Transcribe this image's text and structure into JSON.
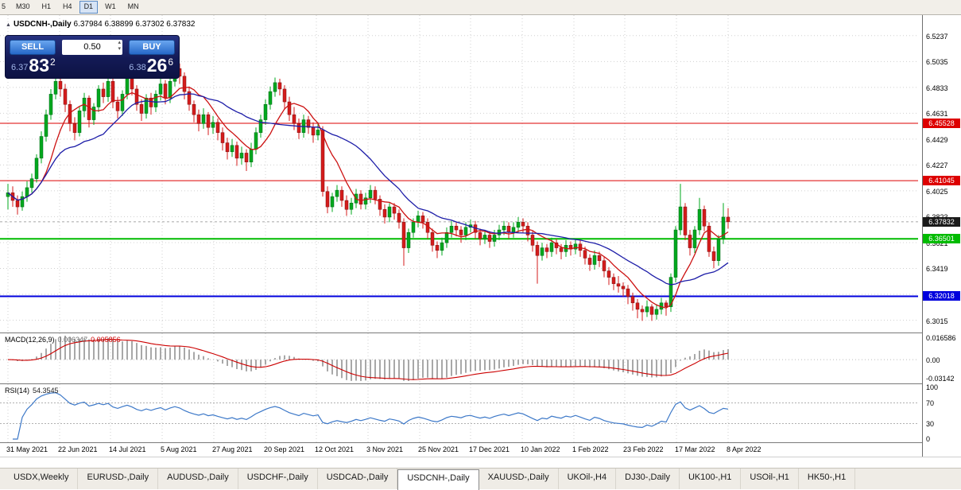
{
  "toolbar": {
    "timeframes": [
      "5",
      "M30",
      "H1",
      "H4",
      "D1",
      "W1",
      "MN"
    ],
    "active_timeframe": "D1"
  },
  "icons": {
    "panel_toggle": "▲",
    "spin_up": "▴",
    "spin_down": "▾"
  },
  "trade_panel": {
    "sell_label": "SELL",
    "buy_label": "BUY",
    "lot_size": "0.50",
    "bid_prefix": "6.37",
    "bid_big": "83",
    "bid_sup": "2",
    "ask_prefix": "6.38",
    "ask_big": "26",
    "ask_sup": "6"
  },
  "chart_data": {
    "type": "candlestick",
    "symbol": "USDCNH-,Daily",
    "ohlc_label": "6.37984 6.38899 6.37302 6.37832",
    "y_range": [
      6.295,
      6.536
    ],
    "y_ticks": [
      "6.5237",
      "6.5035",
      "6.4833",
      "6.4631",
      "6.4429",
      "6.4227",
      "6.4025",
      "6.3823",
      "6.3621",
      "6.3419",
      "6.3217",
      "6.3015"
    ],
    "x_labels": [
      "31 May 2021",
      "22 Jun 2021",
      "14 Jul 2021",
      "5 Aug 2021",
      "27 Aug 2021",
      "20 Sep 2021",
      "12 Oct 2021",
      "3 Nov 2021",
      "25 Nov 2021",
      "17 Dec 2021",
      "10 Jan 2022",
      "1 Feb 2022",
      "23 Feb 2022",
      "17 Mar 2022",
      "8 Apr 2022"
    ],
    "colors": {
      "candle_up": "#00a81e",
      "candle_up_border": "#006414",
      "candle_down": "#d41c1c",
      "candle_down_border": "#7a0f0f",
      "grid": "#d0d0d0",
      "macd_hist": "#a8a8a8",
      "macd_signal": "#cc0000",
      "rsi_line": "#3c78c8"
    },
    "moving_averages": [
      {
        "name": "ma-fast",
        "period": 8,
        "color": "#cc1111"
      },
      {
        "name": "ma-slow",
        "period": 21,
        "color": "#1d1da8"
      }
    ],
    "levels": [
      {
        "price": 6.45528,
        "label": "6.45528",
        "color": "#dd0000",
        "width": 1
      },
      {
        "price": 6.41045,
        "label": "6.41045",
        "color": "#dd0000",
        "width": 1
      },
      {
        "price": 6.36501,
        "label": "6.36501",
        "color": "#00bb00",
        "width": 2
      },
      {
        "price": 6.32018,
        "label": "6.32018",
        "color": "#0000dd",
        "width": 2
      }
    ],
    "current_price": {
      "value": 6.37832,
      "label": "6.37832",
      "color": "#1a1a1a"
    },
    "indicators": [
      {
        "name": "MACD",
        "title": "MACD(12,26,9)",
        "value_main": "0.006347",
        "value_signal": "0.005856",
        "fast": 12,
        "slow": 26,
        "signal": 9,
        "y_ticks": [
          "0.016586",
          "0.00",
          "-0.03142"
        ]
      },
      {
        "name": "RSI",
        "title": "RSI(14)",
        "value": "54.3545",
        "period": 14,
        "levels": [
          70,
          30
        ],
        "y_ticks": [
          "100",
          "70",
          "30",
          "0"
        ]
      }
    ],
    "candles": [
      [
        6.398,
        6.408,
        6.388,
        6.401
      ],
      [
        6.401,
        6.406,
        6.39,
        6.395
      ],
      [
        6.395,
        6.399,
        6.384,
        6.39
      ],
      [
        6.39,
        6.402,
        6.387,
        6.398
      ],
      [
        6.398,
        6.41,
        6.394,
        6.405
      ],
      [
        6.405,
        6.416,
        6.401,
        6.412
      ],
      [
        6.412,
        6.431,
        6.409,
        6.428
      ],
      [
        6.428,
        6.449,
        6.424,
        6.445
      ],
      [
        6.445,
        6.466,
        6.441,
        6.462
      ],
      [
        6.462,
        6.482,
        6.458,
        6.478
      ],
      [
        6.478,
        6.493,
        6.474,
        6.488
      ],
      [
        6.488,
        6.492,
        6.476,
        6.482
      ],
      [
        6.482,
        6.486,
        6.464,
        6.47
      ],
      [
        6.47,
        6.473,
        6.449,
        6.455
      ],
      [
        6.455,
        6.46,
        6.442,
        6.448
      ],
      [
        6.448,
        6.468,
        6.445,
        6.465
      ],
      [
        6.465,
        6.479,
        6.46,
        6.475
      ],
      [
        6.475,
        6.477,
        6.452,
        6.458
      ],
      [
        6.458,
        6.471,
        6.454,
        6.468
      ],
      [
        6.468,
        6.485,
        6.464,
        6.482
      ],
      [
        6.482,
        6.487,
        6.471,
        6.476
      ],
      [
        6.476,
        6.491,
        6.472,
        6.488
      ],
      [
        6.488,
        6.49,
        6.467,
        6.472
      ],
      [
        6.472,
        6.476,
        6.459,
        6.465
      ],
      [
        6.465,
        6.481,
        6.461,
        6.478
      ],
      [
        6.478,
        6.496,
        6.474,
        6.49
      ],
      [
        6.49,
        6.493,
        6.477,
        6.482
      ],
      [
        6.482,
        6.485,
        6.465,
        6.47
      ],
      [
        6.47,
        6.474,
        6.457,
        6.463
      ],
      [
        6.463,
        6.478,
        6.459,
        6.475
      ],
      [
        6.475,
        6.479,
        6.462,
        6.468
      ],
      [
        6.468,
        6.481,
        6.464,
        6.478
      ],
      [
        6.478,
        6.49,
        6.473,
        6.486
      ],
      [
        6.486,
        6.489,
        6.47,
        6.475
      ],
      [
        6.475,
        6.491,
        6.471,
        6.488
      ],
      [
        6.488,
        6.5035,
        6.484,
        6.498
      ],
      [
        6.498,
        6.502,
        6.486,
        6.492
      ],
      [
        6.492,
        6.495,
        6.474,
        6.48
      ],
      [
        6.48,
        6.484,
        6.465,
        6.47
      ],
      [
        6.47,
        6.473,
        6.456,
        6.462
      ],
      [
        6.462,
        6.466,
        6.449,
        6.455
      ],
      [
        6.455,
        6.467,
        6.451,
        6.462
      ],
      [
        6.462,
        6.464,
        6.446,
        6.452
      ],
      [
        6.452,
        6.461,
        6.447,
        6.456
      ],
      [
        6.456,
        6.459,
        6.442,
        6.448
      ],
      [
        6.448,
        6.452,
        6.434,
        6.44
      ],
      [
        6.44,
        6.444,
        6.427,
        6.433
      ],
      [
        6.433,
        6.443,
        6.429,
        6.438
      ],
      [
        6.438,
        6.441,
        6.422,
        6.428
      ],
      [
        6.428,
        6.437,
        6.423,
        6.432
      ],
      [
        6.432,
        6.435,
        6.418,
        6.425
      ],
      [
        6.425,
        6.44,
        6.421,
        6.435
      ],
      [
        6.435,
        6.452,
        6.431,
        6.448
      ],
      [
        6.448,
        6.462,
        6.444,
        6.458
      ],
      [
        6.458,
        6.474,
        6.454,
        6.47
      ],
      [
        6.47,
        6.484,
        6.466,
        6.48
      ],
      [
        6.48,
        6.491,
        6.476,
        6.487
      ],
      [
        6.487,
        6.49,
        6.477,
        6.482
      ],
      [
        6.482,
        6.485,
        6.466,
        6.472
      ],
      [
        6.472,
        6.476,
        6.457,
        6.462
      ],
      [
        6.462,
        6.468,
        6.45,
        6.455
      ],
      [
        6.455,
        6.459,
        6.443,
        6.448
      ],
      [
        6.448,
        6.462,
        6.444,
        6.458
      ],
      [
        6.458,
        6.461,
        6.447,
        6.452
      ],
      [
        6.452,
        6.456,
        6.44,
        6.446
      ],
      [
        6.446,
        6.456,
        6.442,
        6.45
      ],
      [
        6.45,
        6.453,
        6.398,
        6.402
      ],
      [
        6.402,
        6.406,
        6.385,
        6.39
      ],
      [
        6.39,
        6.401,
        6.386,
        6.398
      ],
      [
        6.398,
        6.407,
        6.394,
        6.403
      ],
      [
        6.403,
        6.406,
        6.39,
        6.395
      ],
      [
        6.395,
        6.399,
        6.383,
        6.388
      ],
      [
        6.388,
        6.397,
        6.384,
        6.393
      ],
      [
        6.393,
        6.404,
        6.389,
        6.4
      ],
      [
        6.4,
        6.403,
        6.388,
        6.392
      ],
      [
        6.392,
        6.401,
        6.388,
        6.397
      ],
      [
        6.397,
        6.407,
        6.393,
        6.403
      ],
      [
        6.403,
        6.406,
        6.392,
        6.396
      ],
      [
        6.396,
        6.399,
        6.383,
        6.388
      ],
      [
        6.388,
        6.392,
        6.377,
        6.382
      ],
      [
        6.382,
        6.393,
        6.378,
        6.39
      ],
      [
        6.39,
        6.393,
        6.38,
        6.385
      ],
      [
        6.385,
        6.388,
        6.373,
        6.378
      ],
      [
        6.378,
        6.381,
        6.344,
        6.358
      ],
      [
        6.358,
        6.373,
        6.354,
        6.37
      ],
      [
        6.37,
        6.381,
        6.366,
        6.378
      ],
      [
        6.378,
        6.387,
        6.374,
        6.383
      ],
      [
        6.383,
        6.386,
        6.373,
        6.378
      ],
      [
        6.378,
        6.381,
        6.365,
        6.37
      ],
      [
        6.37,
        6.373,
        6.355,
        6.36
      ],
      [
        6.36,
        6.363,
        6.35,
        6.356
      ],
      [
        6.356,
        6.366,
        6.352,
        6.362
      ],
      [
        6.362,
        6.374,
        6.358,
        6.37
      ],
      [
        6.37,
        6.379,
        6.366,
        6.375
      ],
      [
        6.375,
        6.378,
        6.367,
        6.372
      ],
      [
        6.372,
        6.375,
        6.362,
        6.368
      ],
      [
        6.368,
        6.378,
        6.364,
        6.374
      ],
      [
        6.374,
        6.38,
        6.37,
        6.376
      ],
      [
        6.376,
        6.379,
        6.365,
        6.37
      ],
      [
        6.37,
        6.373,
        6.36,
        6.365
      ],
      [
        6.365,
        6.372,
        6.361,
        6.368
      ],
      [
        6.368,
        6.371,
        6.358,
        6.363
      ],
      [
        6.363,
        6.372,
        6.359,
        6.368
      ],
      [
        6.368,
        6.376,
        6.364,
        6.372
      ],
      [
        6.372,
        6.379,
        6.368,
        6.375
      ],
      [
        6.375,
        6.378,
        6.365,
        6.37
      ],
      [
        6.37,
        6.378,
        6.366,
        6.374
      ],
      [
        6.374,
        6.382,
        6.37,
        6.378
      ],
      [
        6.378,
        6.381,
        6.37,
        6.375
      ],
      [
        6.375,
        6.378,
        6.363,
        6.368
      ],
      [
        6.368,
        6.371,
        6.355,
        6.36
      ],
      [
        6.36,
        6.363,
        6.33,
        6.352
      ],
      [
        6.352,
        6.362,
        6.348,
        6.358
      ],
      [
        6.358,
        6.361,
        6.35,
        6.355
      ],
      [
        6.355,
        6.366,
        6.351,
        6.362
      ],
      [
        6.362,
        6.365,
        6.353,
        6.358
      ],
      [
        6.358,
        6.361,
        6.349,
        6.355
      ],
      [
        6.355,
        6.364,
        6.351,
        6.36
      ],
      [
        6.36,
        6.363,
        6.352,
        6.357
      ],
      [
        6.357,
        6.365,
        6.353,
        6.361
      ],
      [
        6.361,
        6.364,
        6.351,
        6.356
      ],
      [
        6.356,
        6.359,
        6.345,
        6.35
      ],
      [
        6.35,
        6.353,
        6.34,
        6.345
      ],
      [
        6.345,
        6.356,
        6.341,
        6.352
      ],
      [
        6.352,
        6.355,
        6.343,
        6.348
      ],
      [
        6.348,
        6.351,
        6.335,
        6.34
      ],
      [
        6.34,
        6.343,
        6.329,
        6.335
      ],
      [
        6.335,
        6.338,
        6.325,
        6.33
      ],
      [
        6.33,
        6.336,
        6.323,
        6.328
      ],
      [
        6.328,
        6.331,
        6.32,
        6.326
      ],
      [
        6.326,
        6.329,
        6.314,
        6.32
      ],
      [
        6.32,
        6.323,
        6.309,
        6.315
      ],
      [
        6.315,
        6.318,
        6.303,
        6.31
      ],
      [
        6.31,
        6.313,
        6.301,
        6.308
      ],
      [
        6.308,
        6.317,
        6.304,
        6.312
      ],
      [
        6.312,
        6.314,
        6.301,
        6.306
      ],
      [
        6.306,
        6.314,
        6.302,
        6.31
      ],
      [
        6.31,
        6.319,
        6.306,
        6.315
      ],
      [
        6.315,
        6.317,
        6.305,
        6.312
      ],
      [
        6.312,
        6.338,
        6.308,
        6.335
      ],
      [
        6.335,
        6.375,
        6.331,
        6.372
      ],
      [
        6.372,
        6.408,
        6.368,
        6.39
      ],
      [
        6.39,
        6.393,
        6.364,
        6.368
      ],
      [
        6.368,
        6.372,
        6.352,
        6.358
      ],
      [
        6.358,
        6.375,
        6.354,
        6.372
      ],
      [
        6.372,
        6.397,
        6.368,
        6.388
      ],
      [
        6.388,
        6.391,
        6.371,
        6.375
      ],
      [
        6.375,
        6.378,
        6.351,
        6.355
      ],
      [
        6.355,
        6.359,
        6.342,
        6.348
      ],
      [
        6.348,
        6.368,
        6.344,
        6.365
      ],
      [
        6.365,
        6.393,
        6.361,
        6.382
      ],
      [
        6.382,
        6.389,
        6.373,
        6.37832
      ]
    ]
  },
  "tabs": {
    "items": [
      "USDX,Weekly",
      "EURUSD-,Daily",
      "AUDUSD-,Daily",
      "USDCHF-,Daily",
      "USDCAD-,Daily",
      "USDCNH-,Daily",
      "XAUUSD-,Daily",
      "UKOil-,H4",
      "DJ30-,Daily",
      "UK100-,H1",
      "USOil-,H1",
      "HK50-,H1"
    ],
    "active": "USDCNH-,Daily"
  }
}
